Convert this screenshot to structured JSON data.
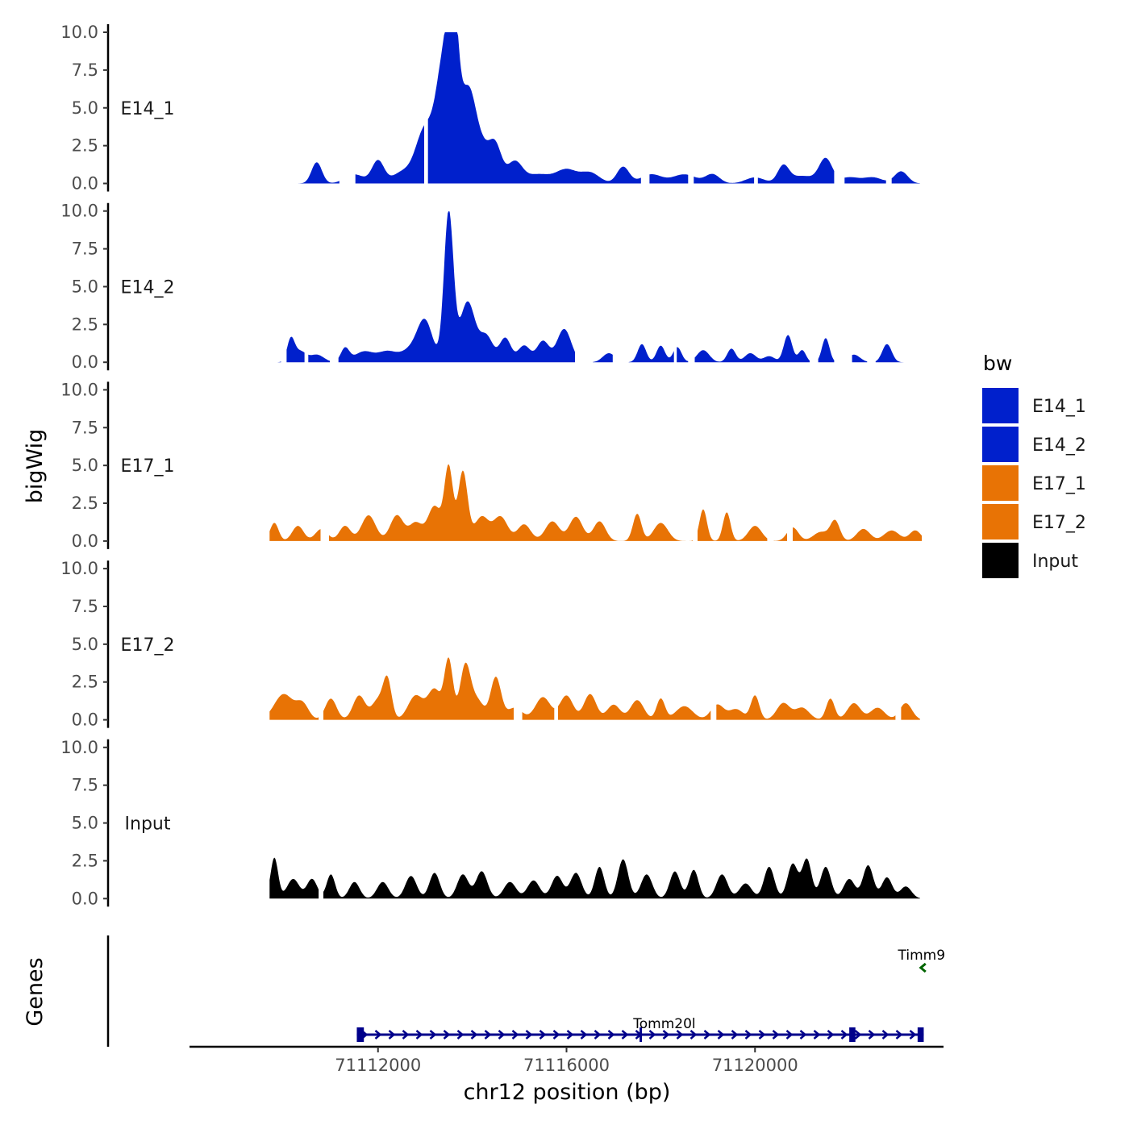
{
  "chart_data": {
    "type": "area",
    "title": "",
    "ylabel": "bigWig",
    "xlabel": "chr12 position (bp)",
    "genes_label": "Genes",
    "ylim": [
      0,
      10
    ],
    "y_ticks": [
      "0.0",
      "2.5",
      "5.0",
      "7.5",
      "10.0"
    ],
    "y_tick_values": [
      0,
      2.5,
      5,
      7.5,
      10
    ],
    "xlim": [
      71108000,
      71124000
    ],
    "x_ticks": [
      "71112000",
      "71116000",
      "71120000"
    ],
    "x_tick_values": [
      71112000,
      71116000,
      71120000
    ],
    "legend": {
      "title": "bw",
      "entries": [
        {
          "label": "E14_1",
          "color": "#0020cc"
        },
        {
          "label": "E14_2",
          "color": "#0020cc"
        },
        {
          "label": "E17_1",
          "color": "#e87305"
        },
        {
          "label": "E17_2",
          "color": "#e87305"
        },
        {
          "label": "Input",
          "color": "#000000"
        }
      ]
    },
    "series": [
      {
        "name": "E14_1",
        "color": "#0020cc",
        "x0": 71109700,
        "x1": 71123500,
        "peaks": [
          [
            71110700,
            1.4,
            110
          ],
          [
            71111500,
            0.6,
            200
          ],
          [
            71112000,
            1.5,
            130
          ],
          [
            71112500,
            0.7,
            200
          ],
          [
            71113000,
            3.6,
            200
          ],
          [
            71113400,
            7.6,
            160
          ],
          [
            71113600,
            8.8,
            110
          ],
          [
            71113900,
            5.5,
            160
          ],
          [
            71114200,
            2.3,
            200
          ],
          [
            71114500,
            2.0,
            130
          ],
          [
            71114900,
            1.4,
            160
          ],
          [
            71115400,
            0.6,
            260
          ],
          [
            71116000,
            0.9,
            220
          ],
          [
            71116500,
            0.7,
            200
          ],
          [
            71117200,
            1.1,
            130
          ],
          [
            71117800,
            0.6,
            220
          ],
          [
            71118500,
            0.6,
            250
          ],
          [
            71119100,
            0.6,
            150
          ],
          [
            71120000,
            0.4,
            200
          ],
          [
            71120600,
            1.1,
            120
          ],
          [
            71121000,
            0.5,
            260
          ],
          [
            71121500,
            1.6,
            140
          ],
          [
            71122000,
            0.4,
            200
          ],
          [
            71122500,
            0.4,
            200
          ],
          [
            71123100,
            0.8,
            140
          ]
        ],
        "gaps": [
          [
            71111200,
            71111500
          ],
          [
            71113000,
            71113050
          ],
          [
            71117600,
            71117750
          ],
          [
            71118600,
            71118680
          ],
          [
            71120000,
            71120050
          ],
          [
            71121700,
            71121880
          ],
          [
            71122800,
            71122880
          ]
        ]
      },
      {
        "name": "E14_2",
        "color": "#0020cc",
        "x0": 71109700,
        "x1": 71123500,
        "peaks": [
          [
            71110150,
            1.5,
            80
          ],
          [
            71110350,
            0.7,
            120
          ],
          [
            71110700,
            0.5,
            150
          ],
          [
            71111300,
            0.9,
            90
          ],
          [
            71111700,
            0.7,
            200
          ],
          [
            71112200,
            0.7,
            200
          ],
          [
            71112700,
            0.8,
            200
          ],
          [
            71113000,
            2.6,
            160
          ],
          [
            71113500,
            9.9,
            100
          ],
          [
            71113900,
            4.0,
            160
          ],
          [
            71114300,
            1.7,
            140
          ],
          [
            71114700,
            1.6,
            120
          ],
          [
            71115100,
            1.1,
            130
          ],
          [
            71115500,
            1.4,
            130
          ],
          [
            71115950,
            2.2,
            150
          ],
          [
            71116900,
            0.6,
            130
          ],
          [
            71117600,
            1.2,
            90
          ],
          [
            71118000,
            1.1,
            90
          ],
          [
            71118350,
            1.0,
            90
          ],
          [
            71118900,
            0.8,
            130
          ],
          [
            71119500,
            0.9,
            90
          ],
          [
            71119900,
            0.6,
            120
          ],
          [
            71120300,
            0.4,
            120
          ],
          [
            71120700,
            1.8,
            90
          ],
          [
            71121000,
            0.8,
            80
          ],
          [
            71121500,
            1.6,
            80
          ],
          [
            71122100,
            0.5,
            130
          ],
          [
            71122800,
            1.2,
            100
          ]
        ],
        "gaps": [
          [
            71109950,
            71110050
          ],
          [
            71110450,
            71110500
          ],
          [
            71111000,
            71111150
          ],
          [
            71116200,
            71116550
          ],
          [
            71117000,
            71117300
          ],
          [
            71118300,
            71118330
          ],
          [
            71118600,
            71118700
          ],
          [
            71121180,
            71121320
          ],
          [
            71121700,
            71122050
          ],
          [
            71122400,
            71122550
          ],
          [
            71123200,
            71123500
          ]
        ]
      },
      {
        "name": "E17_1",
        "color": "#e87305",
        "x0": 71109700,
        "x1": 71123550,
        "peaks": [
          [
            71109800,
            1.2,
            90
          ],
          [
            71110300,
            1.0,
            120
          ],
          [
            71110800,
            0.8,
            130
          ],
          [
            71111300,
            1.0,
            120
          ],
          [
            71111800,
            1.7,
            150
          ],
          [
            71112400,
            1.7,
            140
          ],
          [
            71112800,
            1.2,
            140
          ],
          [
            71113200,
            2.3,
            140
          ],
          [
            71113500,
            4.8,
            90
          ],
          [
            71113800,
            4.6,
            100
          ],
          [
            71114200,
            1.6,
            150
          ],
          [
            71114600,
            1.6,
            150
          ],
          [
            71115100,
            1.1,
            140
          ],
          [
            71115700,
            1.3,
            150
          ],
          [
            71116200,
            1.6,
            140
          ],
          [
            71116700,
            1.3,
            130
          ],
          [
            71117500,
            1.8,
            90
          ],
          [
            71118000,
            1.2,
            150
          ],
          [
            71118900,
            2.1,
            80
          ],
          [
            71119400,
            1.9,
            80
          ],
          [
            71120000,
            1.0,
            140
          ],
          [
            71120800,
            0.9,
            120
          ],
          [
            71121400,
            0.6,
            160
          ],
          [
            71121700,
            1.3,
            100
          ],
          [
            71122300,
            0.8,
            140
          ],
          [
            71122900,
            0.7,
            160
          ],
          [
            71123400,
            0.7,
            120
          ]
        ],
        "gaps": [
          [
            71110800,
            71110950
          ],
          [
            71118700,
            71118760
          ],
          [
            71120280,
            71120380
          ],
          [
            71120700,
            71120780
          ]
        ]
      },
      {
        "name": "E17_2",
        "color": "#e87305",
        "x0": 71109700,
        "x1": 71123500,
        "peaks": [
          [
            71110000,
            1.7,
            200
          ],
          [
            71110400,
            1.0,
            130
          ],
          [
            71111000,
            1.4,
            120
          ],
          [
            71111600,
            1.6,
            130
          ],
          [
            71112000,
            1.3,
            130
          ],
          [
            71112200,
            2.5,
            90
          ],
          [
            71112800,
            1.6,
            160
          ],
          [
            71113200,
            2.0,
            140
          ],
          [
            71113500,
            3.9,
            90
          ],
          [
            71113850,
            3.5,
            110
          ],
          [
            71114100,
            1.3,
            140
          ],
          [
            71114500,
            2.8,
            110
          ],
          [
            71114900,
            0.8,
            160
          ],
          [
            71115500,
            1.5,
            160
          ],
          [
            71116000,
            1.6,
            140
          ],
          [
            71116500,
            1.7,
            130
          ],
          [
            71117000,
            1.0,
            140
          ],
          [
            71117500,
            1.3,
            140
          ],
          [
            71118000,
            1.4,
            90
          ],
          [
            71118500,
            0.9,
            180
          ],
          [
            71119200,
            1.0,
            140
          ],
          [
            71119600,
            0.7,
            150
          ],
          [
            71120000,
            1.6,
            90
          ],
          [
            71120600,
            1.1,
            140
          ],
          [
            71121000,
            0.8,
            150
          ],
          [
            71121600,
            1.4,
            90
          ],
          [
            71122100,
            1.1,
            140
          ],
          [
            71122600,
            0.8,
            150
          ],
          [
            71123200,
            1.1,
            130
          ]
        ],
        "gaps": [
          [
            71110750,
            71110830
          ],
          [
            71114900,
            71115050
          ],
          [
            71115750,
            71115800
          ],
          [
            71119080,
            71119160
          ],
          [
            71123000,
            71123080
          ]
        ]
      },
      {
        "name": "Input",
        "color": "#000000",
        "x0": 71109700,
        "x1": 71123500,
        "peaks": [
          [
            71109800,
            2.7,
            80
          ],
          [
            71110200,
            1.3,
            130
          ],
          [
            71110600,
            1.3,
            110
          ],
          [
            71111000,
            1.6,
            90
          ],
          [
            71111500,
            1.1,
            110
          ],
          [
            71112100,
            1.1,
            120
          ],
          [
            71112700,
            1.5,
            120
          ],
          [
            71113200,
            1.7,
            110
          ],
          [
            71113800,
            1.6,
            120
          ],
          [
            71114200,
            1.8,
            120
          ],
          [
            71114800,
            1.1,
            130
          ],
          [
            71115300,
            1.2,
            130
          ],
          [
            71115800,
            1.5,
            120
          ],
          [
            71116200,
            1.7,
            120
          ],
          [
            71116700,
            2.1,
            100
          ],
          [
            71117200,
            2.6,
            110
          ],
          [
            71117700,
            1.6,
            120
          ],
          [
            71118300,
            1.8,
            110
          ],
          [
            71118700,
            1.9,
            100
          ],
          [
            71119300,
            1.6,
            120
          ],
          [
            71119800,
            1.0,
            130
          ],
          [
            71120300,
            2.1,
            110
          ],
          [
            71120800,
            2.3,
            110
          ],
          [
            71121100,
            2.6,
            100
          ],
          [
            71121500,
            2.1,
            110
          ],
          [
            71122000,
            1.3,
            120
          ],
          [
            71122400,
            2.2,
            110
          ],
          [
            71122800,
            1.4,
            110
          ],
          [
            71123200,
            0.8,
            120
          ]
        ],
        "gaps": [
          [
            71110750,
            71110820
          ]
        ]
      }
    ],
    "gene_track": {
      "genes": [
        {
          "name": "Tomm20l",
          "start": 71111550,
          "end": 71123580,
          "strand": "+",
          "color": "#00008b",
          "exons": [
            [
              71111550,
              71111700
            ],
            [
              71117550,
              71117600
            ],
            [
              71122000,
              71122130
            ],
            [
              71123450,
              71123580
            ]
          ]
        },
        {
          "name": "Timm9",
          "start": 71123500,
          "end": 71123580,
          "strand": "-",
          "color": "#006400",
          "exons": []
        }
      ]
    }
  }
}
